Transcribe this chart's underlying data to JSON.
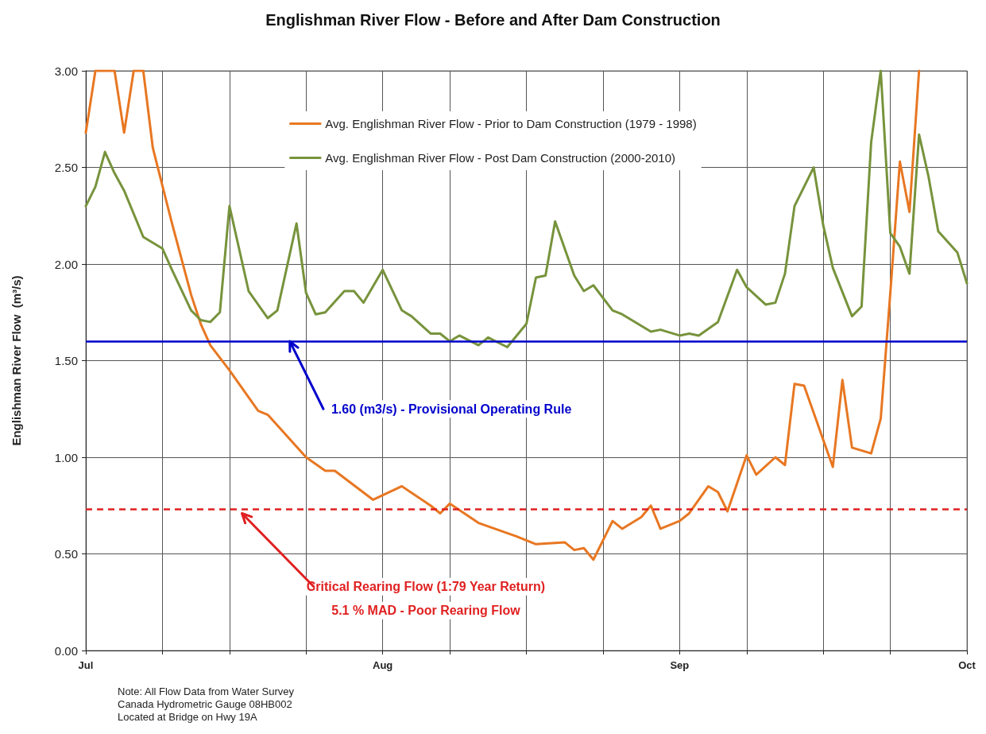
{
  "chart_data": {
    "type": "line",
    "title": "Englishman River Flow - Before and After Dam Construction",
    "ylabel": "Englishman River Flow  (m³/s)",
    "xlim": [
      "--07-01",
      "--10-01"
    ],
    "ylim": [
      0,
      3
    ],
    "xticks": [
      {
        "value": "--07-01",
        "label": "Jul"
      },
      {
        "value": "--07-09",
        "label": null
      },
      {
        "value": "--07-16",
        "label": null
      },
      {
        "value": "--07-24",
        "label": null
      },
      {
        "value": "--08-01",
        "label": "Aug"
      },
      {
        "value": "--08-08",
        "label": null
      },
      {
        "value": "--08-16",
        "label": null
      },
      {
        "value": "--08-24",
        "label": null
      },
      {
        "value": "--09-01",
        "label": "Sep"
      },
      {
        "value": "--09-08",
        "label": null
      },
      {
        "value": "--09-16",
        "label": null
      },
      {
        "value": "--09-23",
        "label": null
      },
      {
        "value": "--10-01",
        "label": "Oct"
      }
    ],
    "yticks": [
      {
        "value": 0,
        "label": "0.00"
      },
      {
        "value": 0.5,
        "label": "0.50"
      },
      {
        "value": 1,
        "label": "1.00"
      },
      {
        "value": 1.5,
        "label": "1.50"
      },
      {
        "value": 2,
        "label": "2.00"
      },
      {
        "value": 2.5,
        "label": "2.50"
      },
      {
        "value": 3,
        "label": "3.00"
      }
    ],
    "grid": true,
    "legend": "top",
    "marker": "none",
    "series": [
      {
        "name": "Avg. Englishman River Flow - Prior to Dam Construction (1979 - 1998)",
        "color": "#e87722",
        "x": [
          "--07-01",
          "--07-02",
          "--07-04",
          "--07-05",
          "--07-06",
          "--07-07",
          "--07-08",
          "--07-10",
          "--07-12",
          "--07-13",
          "--07-14",
          "--07-16",
          "--07-19",
          "--07-20",
          "--07-22",
          "--07-24",
          "--07-26",
          "--07-27",
          "--07-31",
          "--08-03",
          "--08-06",
          "--08-07",
          "--08-08",
          "--08-11",
          "--08-15",
          "--08-17",
          "--08-20",
          "--08-21",
          "--08-22",
          "--08-23",
          "--08-25",
          "--08-26",
          "--08-28",
          "--08-29",
          "--08-30",
          "--09-01",
          "--09-02",
          "--09-04",
          "--09-05",
          "--09-06",
          "--09-08",
          "--09-09",
          "--09-11",
          "--09-12",
          "--09-13",
          "--09-14",
          "--09-17",
          "--09-18",
          "--09-19",
          "--09-21",
          "--09-22",
          "--09-23",
          "--09-24",
          "--09-25",
          "--09-26"
        ],
        "values": [
          2.68,
          3.0,
          3.0,
          2.68,
          3.0,
          3.0,
          2.6,
          2.21,
          1.84,
          1.69,
          1.58,
          1.45,
          1.24,
          1.22,
          1.11,
          1.0,
          0.93,
          0.93,
          0.78,
          0.85,
          0.75,
          0.71,
          0.76,
          0.66,
          0.59,
          0.55,
          0.56,
          0.52,
          0.53,
          0.47,
          0.67,
          0.63,
          0.69,
          0.75,
          0.63,
          0.67,
          0.71,
          0.85,
          0.82,
          0.72,
          1.01,
          0.91,
          1.0,
          0.96,
          1.38,
          1.37,
          0.95,
          1.4,
          1.05,
          1.02,
          1.2,
          1.85,
          2.53,
          2.27,
          3.0
        ]
      },
      {
        "name": "Avg. Englishman River Flow - Post Dam Construction (2000-2010)",
        "color": "#77933c",
        "x": [
          "--07-01",
          "--07-02",
          "--07-03",
          "--07-04",
          "--07-05",
          "--07-07",
          "--07-09",
          "--07-10",
          "--07-12",
          "--07-13",
          "--07-14",
          "--07-15",
          "--07-16",
          "--07-18",
          "--07-20",
          "--07-21",
          "--07-23",
          "--07-24",
          "--07-25",
          "--07-26",
          "--07-28",
          "--07-29",
          "--07-30",
          "--08-01",
          "--08-03",
          "--08-04",
          "--08-06",
          "--08-07",
          "--08-08",
          "--08-09",
          "--08-11",
          "--08-12",
          "--08-14",
          "--08-16",
          "--08-17",
          "--08-18",
          "--08-19",
          "--08-21",
          "--08-22",
          "--08-23",
          "--08-25",
          "--08-26",
          "--08-29",
          "--08-30",
          "--09-01",
          "--09-02",
          "--09-03",
          "--09-05",
          "--09-07",
          "--09-08",
          "--09-10",
          "--09-11",
          "--09-12",
          "--09-13",
          "--09-15",
          "--09-16",
          "--09-17",
          "--09-19",
          "--09-20",
          "--09-21",
          "--09-22",
          "--09-23",
          "--09-24",
          "--09-25",
          "--09-26",
          "--09-27",
          "--09-28",
          "--09-30",
          "--10-01"
        ],
        "values": [
          2.3,
          2.4,
          2.58,
          2.47,
          2.38,
          2.14,
          2.08,
          1.97,
          1.76,
          1.71,
          1.7,
          1.75,
          2.3,
          1.86,
          1.72,
          1.76,
          2.21,
          1.85,
          1.74,
          1.75,
          1.86,
          1.86,
          1.8,
          1.97,
          1.76,
          1.73,
          1.64,
          1.64,
          1.6,
          1.63,
          1.58,
          1.62,
          1.57,
          1.69,
          1.93,
          1.94,
          2.22,
          1.94,
          1.86,
          1.89,
          1.76,
          1.74,
          1.65,
          1.66,
          1.63,
          1.64,
          1.63,
          1.7,
          1.97,
          1.88,
          1.79,
          1.8,
          1.95,
          2.3,
          2.5,
          2.2,
          1.98,
          1.73,
          1.78,
          2.63,
          3.0,
          2.16,
          2.09,
          1.95,
          2.67,
          2.45,
          2.17,
          2.06,
          1.9
        ]
      }
    ],
    "ref_lines": [
      {
        "axis": "y",
        "value": 1.6,
        "label": "1.60 (m3/s) - Provisional Operating Rule",
        "color": "#0000cc",
        "line_style": "solid"
      },
      {
        "axis": "y",
        "value": 0.73,
        "label": "Critical Rearing Flow (1:79 Year Return)\n5.1 % MAD - Poor Rearing Flow",
        "color": "#e02020",
        "line_style": "dashed"
      }
    ],
    "annotations": [
      "Note: All Flow Data from Water Survey\nCanada Hydrometric Gauge 08HB002\nLocated at Bridge on Hwy 19A"
    ]
  }
}
